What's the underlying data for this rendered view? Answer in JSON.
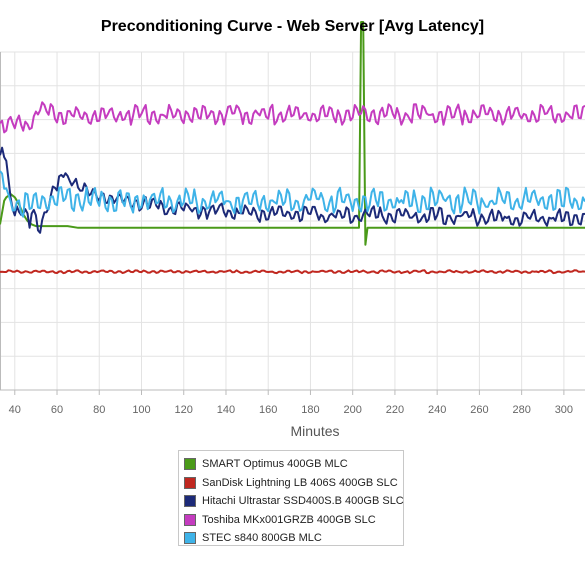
{
  "chart_data": {
    "type": "line",
    "title": "Preconditioning Curve - Web Server [Avg Latency]",
    "xlabel": "Minutes",
    "ylabel": "",
    "xlim": [
      33,
      310
    ],
    "x_ticks": [
      40,
      60,
      80,
      100,
      120,
      140,
      160,
      180,
      200,
      220,
      240,
      260,
      280,
      300
    ],
    "ylim": [
      0,
      10
    ],
    "grid": true,
    "legend_position": "bottom-center",
    "series": [
      {
        "name": "SMART Optimus 400GB MLC",
        "color": "#4a9a19",
        "points": [
          [
            33,
            4.9
          ],
          [
            35,
            5.6
          ],
          [
            36,
            5.7
          ],
          [
            38,
            5.8
          ],
          [
            40,
            5.7
          ],
          [
            41,
            5.6
          ],
          [
            42,
            5.5
          ],
          [
            44,
            5.2
          ],
          [
            46,
            5.0
          ],
          [
            48,
            4.9
          ],
          [
            50,
            4.85
          ],
          [
            55,
            4.85
          ],
          [
            60,
            4.85
          ],
          [
            65,
            4.85
          ],
          [
            70,
            4.8
          ],
          [
            80,
            4.8
          ],
          [
            90,
            4.8
          ],
          [
            100,
            4.8
          ],
          [
            120,
            4.8
          ],
          [
            140,
            4.8
          ],
          [
            160,
            4.8
          ],
          [
            180,
            4.8
          ],
          [
            200,
            4.8
          ],
          [
            203,
            4.8
          ],
          [
            204,
            13.0
          ],
          [
            205,
            12.5
          ],
          [
            206,
            4.3
          ],
          [
            207,
            4.8
          ],
          [
            210,
            4.8
          ],
          [
            220,
            4.8
          ],
          [
            240,
            4.8
          ],
          [
            260,
            4.8
          ],
          [
            280,
            4.8
          ],
          [
            300,
            4.8
          ],
          [
            310,
            4.8
          ]
        ]
      },
      {
        "name": "SanDisk Lightning LB 406S 400GB SLC",
        "color": "#c0271f",
        "points": [
          [
            33,
            3.5
          ],
          [
            60,
            3.5
          ],
          [
            100,
            3.5
          ],
          [
            150,
            3.5
          ],
          [
            200,
            3.5
          ],
          [
            250,
            3.5
          ],
          [
            310,
            3.5
          ]
        ]
      },
      {
        "name": "Hitachi Ultrastar SSD400S.B 400GB SLC",
        "color": "#1c2a78",
        "points": [
          [
            33,
            6.8
          ],
          [
            34,
            7.0
          ],
          [
            36,
            6.9
          ],
          [
            37,
            6.2
          ],
          [
            38,
            5.6
          ],
          [
            40,
            5.4
          ],
          [
            42,
            5.3
          ],
          [
            44,
            5.2
          ],
          [
            46,
            5.1
          ],
          [
            47,
            4.9
          ],
          [
            48,
            5.3
          ],
          [
            50,
            5.0
          ],
          [
            52,
            4.9
          ],
          [
            54,
            5.2
          ],
          [
            56,
            5.6
          ],
          [
            58,
            5.9
          ],
          [
            60,
            6.0
          ],
          [
            62,
            6.2
          ],
          [
            64,
            6.4
          ],
          [
            66,
            6.2
          ],
          [
            68,
            6.3
          ],
          [
            70,
            6.0
          ],
          [
            72,
            6.1
          ],
          [
            74,
            5.8
          ],
          [
            76,
            5.9
          ],
          [
            78,
            5.7
          ],
          [
            80,
            5.8
          ],
          [
            85,
            5.7
          ],
          [
            90,
            5.6
          ],
          [
            95,
            5.55
          ],
          [
            100,
            5.5
          ],
          [
            110,
            5.4
          ],
          [
            120,
            5.35
          ],
          [
            130,
            5.3
          ],
          [
            140,
            5.3
          ],
          [
            150,
            5.25
          ],
          [
            160,
            5.2
          ],
          [
            170,
            5.2
          ],
          [
            180,
            5.2
          ],
          [
            190,
            5.15
          ],
          [
            200,
            5.15
          ],
          [
            210,
            5.2
          ],
          [
            220,
            5.15
          ],
          [
            230,
            5.15
          ],
          [
            240,
            5.15
          ],
          [
            250,
            5.15
          ],
          [
            260,
            5.1
          ],
          [
            270,
            5.1
          ],
          [
            280,
            5.1
          ],
          [
            290,
            5.1
          ],
          [
            300,
            5.1
          ],
          [
            310,
            5.1
          ]
        ]
      },
      {
        "name": "Toshiba MKx001GRZB 400GB SLC",
        "color": "#c43cbf",
        "points": [
          [
            33,
            7.9
          ],
          [
            36,
            7.8
          ],
          [
            38,
            7.9
          ],
          [
            40,
            7.8
          ],
          [
            42,
            7.9
          ],
          [
            44,
            7.85
          ],
          [
            46,
            7.9
          ],
          [
            48,
            8.0
          ],
          [
            50,
            8.2
          ],
          [
            52,
            8.25
          ],
          [
            60,
            8.15
          ],
          [
            70,
            8.1
          ],
          [
            80,
            8.15
          ],
          [
            90,
            8.15
          ],
          [
            100,
            8.15
          ],
          [
            120,
            8.15
          ],
          [
            140,
            8.15
          ],
          [
            160,
            8.15
          ],
          [
            180,
            8.15
          ],
          [
            200,
            8.15
          ],
          [
            220,
            8.15
          ],
          [
            240,
            8.15
          ],
          [
            260,
            8.15
          ],
          [
            280,
            8.15
          ],
          [
            300,
            8.15
          ],
          [
            310,
            8.15
          ]
        ]
      },
      {
        "name": "STEC s840 800GB MLC",
        "color": "#3fb3e8",
        "points": [
          [
            33,
            6.3
          ],
          [
            35,
            6.1
          ],
          [
            37,
            5.8
          ],
          [
            38,
            5.6
          ],
          [
            40,
            5.5
          ],
          [
            42,
            5.45
          ],
          [
            44,
            5.4
          ],
          [
            46,
            5.5
          ],
          [
            48,
            5.4
          ],
          [
            50,
            5.55
          ],
          [
            55,
            5.6
          ],
          [
            60,
            5.6
          ],
          [
            70,
            5.65
          ],
          [
            80,
            5.6
          ],
          [
            90,
            5.6
          ],
          [
            100,
            5.6
          ],
          [
            120,
            5.6
          ],
          [
            140,
            5.6
          ],
          [
            160,
            5.6
          ],
          [
            180,
            5.6
          ],
          [
            200,
            5.6
          ],
          [
            220,
            5.6
          ],
          [
            240,
            5.6
          ],
          [
            260,
            5.6
          ],
          [
            280,
            5.6
          ],
          [
            300,
            5.6
          ],
          [
            310,
            5.6
          ]
        ]
      }
    ]
  }
}
